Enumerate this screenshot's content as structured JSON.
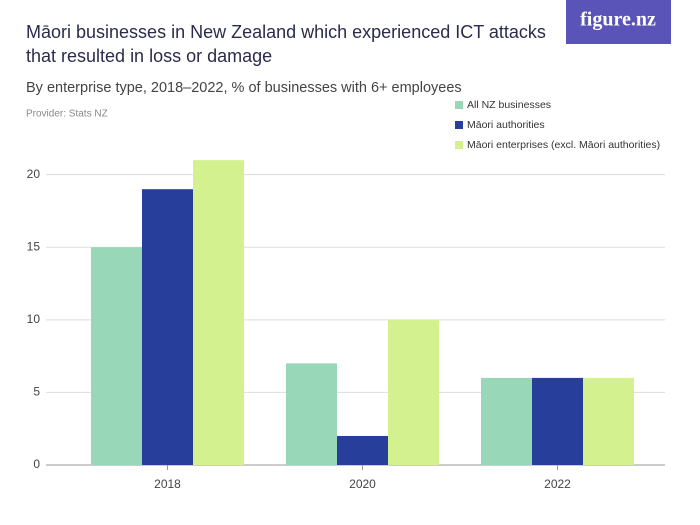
{
  "logo": "figure.nz",
  "chart_data": {
    "type": "bar",
    "title": "Māori businesses in New Zealand which experienced ICT attacks that resulted in loss or damage",
    "subtitle": "By enterprise type, 2018–2022, % of businesses with 6+ employees",
    "provider": "Provider: Stats NZ",
    "categories": [
      "2018",
      "2020",
      "2022"
    ],
    "series": [
      {
        "name": "All NZ businesses",
        "color": "#98d8b9",
        "values": [
          15,
          7,
          6
        ]
      },
      {
        "name": "Māori authorities",
        "color": "#273f9a",
        "values": [
          19,
          2,
          6
        ]
      },
      {
        "name": "Māori enterprises (excl. Māori authorities)",
        "color": "#d4f18f",
        "values": [
          21,
          10,
          6
        ]
      }
    ],
    "ylim": [
      0,
      21.7
    ],
    "yticks": [
      0,
      5,
      10,
      15,
      20
    ],
    "grid": true
  }
}
